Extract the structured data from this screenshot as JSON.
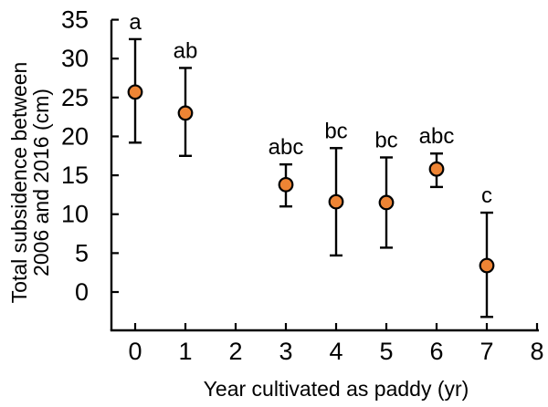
{
  "figure": {
    "background": "#ffffff",
    "axis_color": "#000000",
    "text_color": "#000000"
  },
  "chart_data": {
    "type": "scatter",
    "title": "",
    "xlabel": "Year cultivated as paddy  (yr)",
    "ylabel": "Total subsidence between 2006 and 2016 (cm)",
    "ylabel_lines": [
      "Total subsidence between",
      "2006 and 2016 (cm)"
    ],
    "x_ticks": [
      "0",
      "1",
      "2",
      "3",
      "4",
      "5",
      "6",
      "7",
      "8"
    ],
    "y_ticks": [
      "0",
      "5",
      "10",
      "15",
      "20",
      "25",
      "30",
      "35"
    ],
    "xlim": [
      -0.5,
      8.1
    ],
    "ylim": [
      -5,
      35
    ],
    "grid": false,
    "legend": "none",
    "error_bars": "vertical, capped",
    "marker": {
      "shape": "circle",
      "fill": "#EE8434",
      "stroke": "#000000"
    },
    "series": [
      {
        "name": "Total subsidence 2006-2016",
        "points": [
          {
            "x": 0,
            "y": 25.7,
            "err_low": 19.2,
            "err_high": 32.5,
            "sig_label": "a"
          },
          {
            "x": 1,
            "y": 23.0,
            "err_low": 17.5,
            "err_high": 28.8,
            "sig_label": "ab"
          },
          {
            "x": 3,
            "y": 13.8,
            "err_low": 11.0,
            "err_high": 16.4,
            "sig_label": "abc"
          },
          {
            "x": 4,
            "y": 11.6,
            "err_low": 4.7,
            "err_high": 18.5,
            "sig_label": "bc"
          },
          {
            "x": 5,
            "y": 11.5,
            "err_low": 5.7,
            "err_high": 17.3,
            "sig_label": "bc"
          },
          {
            "x": 6,
            "y": 15.8,
            "err_low": 13.5,
            "err_high": 17.8,
            "sig_label": "abc"
          },
          {
            "x": 7,
            "y": 3.4,
            "err_low": -3.2,
            "err_high": 10.2,
            "sig_label": "c"
          }
        ]
      }
    ]
  }
}
